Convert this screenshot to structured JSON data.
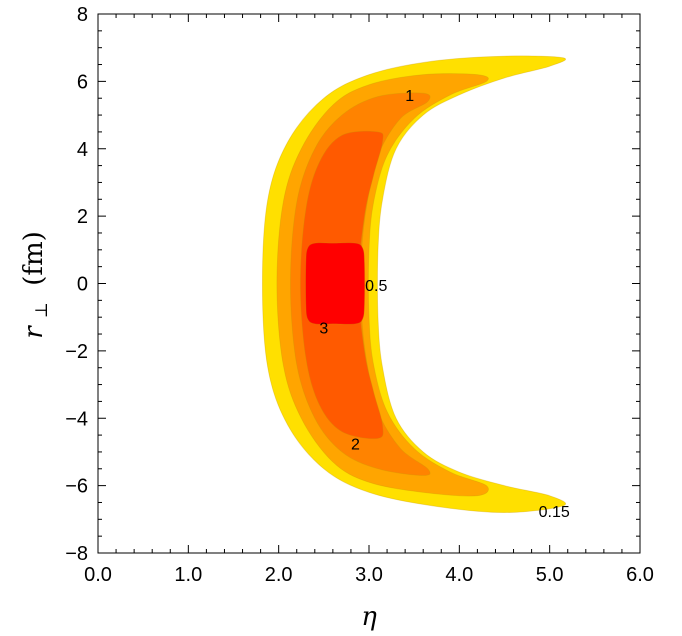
{
  "chart_data": {
    "type": "contour",
    "title": "",
    "xlabel": "η",
    "ylabel_main": "r",
    "ylabel_sub": "⊥",
    "ylabel_unit": "(fm)",
    "xlim": [
      0,
      6
    ],
    "ylim": [
      -8,
      8
    ],
    "x_ticks": [
      0,
      1,
      2,
      3,
      4,
      5,
      6
    ],
    "x_tick_labels": [
      "0.0",
      "1.0",
      "2.0",
      "3.0",
      "4.0",
      "5.0",
      "6.0"
    ],
    "y_ticks": [
      -8,
      -6,
      -4,
      -2,
      0,
      2,
      4,
      6,
      8
    ],
    "y_tick_labels": [
      "−8",
      "−6",
      "−4",
      "−2",
      "0",
      "2",
      "4",
      "6",
      "8"
    ],
    "grid": false,
    "levels": [
      {
        "value": 0.15,
        "label": "0.15",
        "color": "#FFE000",
        "label_pos": [
          5.05,
          -6.75
        ],
        "outer": [
          [
            5.15,
            6.7
          ],
          [
            4.5,
            6.75
          ],
          [
            3.7,
            6.6
          ],
          [
            3.0,
            6.2
          ],
          [
            2.5,
            5.5
          ],
          [
            2.1,
            4.2
          ],
          [
            1.88,
            2.5
          ],
          [
            1.82,
            0
          ],
          [
            1.88,
            -2.5
          ],
          [
            2.1,
            -4.2
          ],
          [
            2.5,
            -5.5
          ],
          [
            3.0,
            -6.2
          ],
          [
            3.7,
            -6.6
          ],
          [
            4.5,
            -6.8
          ],
          [
            5.15,
            -6.6
          ],
          [
            5.0,
            -6.3
          ],
          [
            4.5,
            -6.0
          ],
          [
            4.0,
            -5.6
          ],
          [
            3.6,
            -5.0
          ],
          [
            3.3,
            -4.0
          ],
          [
            3.15,
            -2.5
          ],
          [
            3.1,
            -1.0
          ],
          [
            3.1,
            1.0
          ],
          [
            3.15,
            2.5
          ],
          [
            3.3,
            4.0
          ],
          [
            3.6,
            5.0
          ],
          [
            4.0,
            5.6
          ],
          [
            4.5,
            6.1
          ],
          [
            5.0,
            6.45
          ]
        ]
      },
      {
        "value": 0.5,
        "label": "0.5",
        "color": "#FFA500",
        "label_pos": [
          3.08,
          -0.05
        ],
        "outer": [
          [
            4.2,
            6.2
          ],
          [
            3.6,
            6.2
          ],
          [
            3.0,
            5.9
          ],
          [
            2.6,
            5.3
          ],
          [
            2.25,
            4.0
          ],
          [
            2.05,
            2.4
          ],
          [
            1.98,
            0
          ],
          [
            2.05,
            -2.4
          ],
          [
            2.25,
            -4.0
          ],
          [
            2.6,
            -5.3
          ],
          [
            3.0,
            -5.9
          ],
          [
            3.6,
            -6.2
          ],
          [
            4.2,
            -6.3
          ],
          [
            4.3,
            -6.0
          ],
          [
            3.9,
            -5.6
          ],
          [
            3.5,
            -4.9
          ],
          [
            3.2,
            -3.8
          ],
          [
            3.05,
            -2.4
          ],
          [
            3.0,
            -1.0
          ],
          [
            3.0,
            1.0
          ],
          [
            3.05,
            2.4
          ],
          [
            3.2,
            3.8
          ],
          [
            3.5,
            4.9
          ],
          [
            3.9,
            5.6
          ],
          [
            4.3,
            6.0
          ]
        ]
      },
      {
        "value": 1,
        "label": "1",
        "color": "#FF8300",
        "label_pos": [
          3.45,
          5.6
        ],
        "outer": [
          [
            3.6,
            5.65
          ],
          [
            3.1,
            5.55
          ],
          [
            2.7,
            5.0
          ],
          [
            2.4,
            4.0
          ],
          [
            2.2,
            2.4
          ],
          [
            2.13,
            0
          ],
          [
            2.2,
            -2.4
          ],
          [
            2.4,
            -4.0
          ],
          [
            2.7,
            -5.0
          ],
          [
            3.1,
            -5.5
          ],
          [
            3.6,
            -5.7
          ],
          [
            3.65,
            -5.5
          ],
          [
            3.35,
            -4.9
          ],
          [
            3.1,
            -3.8
          ],
          [
            2.98,
            -2.4
          ],
          [
            2.92,
            -1.0
          ],
          [
            2.92,
            1.0
          ],
          [
            2.98,
            2.4
          ],
          [
            3.1,
            3.8
          ],
          [
            3.35,
            4.9
          ],
          [
            3.65,
            5.4
          ]
        ]
      },
      {
        "value": 2,
        "label": "2",
        "color": "#FF5A00",
        "label_pos": [
          2.85,
          -4.75
        ],
        "outer": [
          [
            3.1,
            4.5
          ],
          [
            2.7,
            4.4
          ],
          [
            2.45,
            3.6
          ],
          [
            2.3,
            2.2
          ],
          [
            2.24,
            0
          ],
          [
            2.3,
            -2.2
          ],
          [
            2.45,
            -3.6
          ],
          [
            2.7,
            -4.4
          ],
          [
            3.1,
            -4.6
          ],
          [
            3.15,
            -4.2
          ],
          [
            3.05,
            -3.2
          ],
          [
            2.95,
            -2.0
          ],
          [
            2.88,
            0
          ],
          [
            2.95,
            2.0
          ],
          [
            3.05,
            3.2
          ],
          [
            3.15,
            4.2
          ]
        ]
      },
      {
        "value": 3,
        "label": "3",
        "color": "#FF0000",
        "label_pos": [
          2.5,
          -1.3
        ],
        "outer": [
          [
            2.6,
            1.2
          ],
          [
            2.4,
            1.2
          ],
          [
            2.32,
            1.05
          ],
          [
            2.3,
            0.6
          ],
          [
            2.3,
            -0.6
          ],
          [
            2.32,
            -1.05
          ],
          [
            2.4,
            -1.2
          ],
          [
            2.6,
            -1.2
          ],
          [
            2.85,
            -1.2
          ],
          [
            2.93,
            -1.05
          ],
          [
            2.95,
            -0.6
          ],
          [
            2.95,
            0.6
          ],
          [
            2.93,
            1.05
          ],
          [
            2.85,
            1.2
          ]
        ]
      }
    ]
  }
}
